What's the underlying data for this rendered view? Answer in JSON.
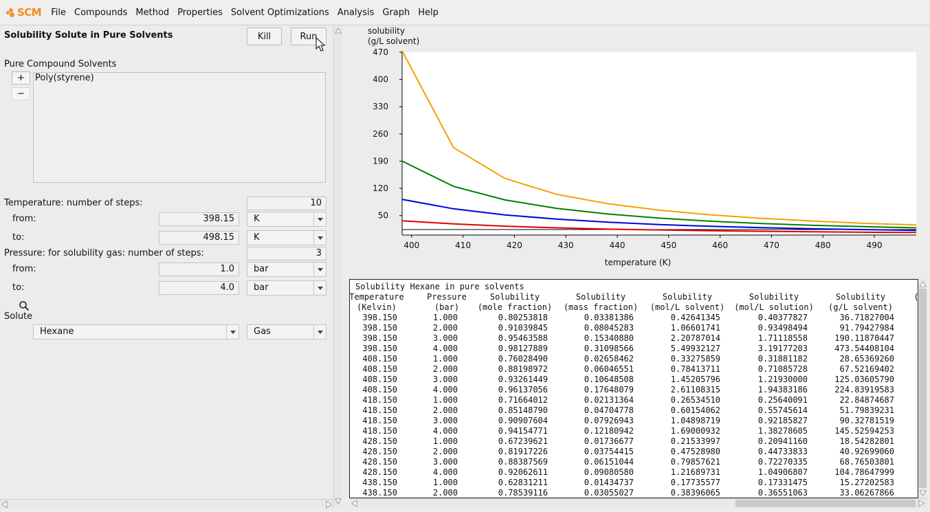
{
  "app": {
    "logo_text": "SCM"
  },
  "menu": [
    "File",
    "Compounds",
    "Method",
    "Properties",
    "Solvent Optimizations",
    "Analysis",
    "Graph",
    "Help"
  ],
  "panel": {
    "title": "Solubility Solute in Pure Solvents",
    "kill_label": "Kill",
    "run_label": "Run",
    "solvents_label": "Pure Compound Solvents",
    "add_label": "+",
    "remove_label": "−",
    "solvents": [
      "Poly(styrene)"
    ],
    "temp_steps_label": "Temperature: number of steps:",
    "temp_steps": "10",
    "temp_from_label": "from:",
    "temp_from": "398.15",
    "temp_from_unit": "K",
    "temp_to_label": "to:",
    "temp_to": "498.15",
    "temp_to_unit": "K",
    "pressure_steps_label": "Pressure: for solubility gas: number of steps:",
    "pressure_steps": "3",
    "pressure_from_label": "from:",
    "pressure_from": "1.0",
    "pressure_from_unit": "bar",
    "pressure_to_label": "to:",
    "pressure_to": "4.0",
    "pressure_to_unit": "bar",
    "solute_label": "Solute",
    "solute": "Hexane",
    "phase": "Gas"
  },
  "chart_data": {
    "type": "line",
    "ylabel_line1": "solubility",
    "ylabel_line2": "(g/L solvent)",
    "xlabel": "temperature (K)",
    "xlim": [
      398.15,
      498.15
    ],
    "ylim": [
      0,
      470
    ],
    "xticks": [
      400,
      410,
      420,
      430,
      440,
      450,
      460,
      470,
      480,
      490
    ],
    "yticks": [
      50,
      120,
      190,
      260,
      330,
      400,
      470
    ],
    "x": [
      398.15,
      408.15,
      418.15,
      428.15,
      438.15,
      448.15,
      458.15,
      468.15,
      478.15,
      488.15,
      498.15
    ],
    "series": [
      {
        "color": "#f5a000",
        "values": [
          473.54,
          224.84,
          145.53,
          104.79,
          80.5,
          64,
          52,
          43,
          36,
          30,
          26
        ]
      },
      {
        "color": "#008000",
        "values": [
          190.12,
          125.04,
          90.33,
          68.77,
          54,
          43.5,
          35.5,
          29.5,
          25,
          21.5,
          18.5
        ]
      },
      {
        "color": "#0000e0",
        "values": [
          91.79,
          67.52,
          51.8,
          40.93,
          33.06,
          27,
          22.5,
          19,
          16,
          14,
          12
        ]
      },
      {
        "color": "#e00000",
        "values": [
          36.72,
          28.65,
          22.85,
          18.54,
          15.27,
          13,
          11,
          9.5,
          8.3,
          7.3,
          6.5
        ]
      }
    ]
  },
  "table": {
    "title": "Solubility Hexane in pure solvents",
    "headers": [
      [
        "Temperature",
        "(Kelvin)"
      ],
      [
        "Pressure",
        "(bar)"
      ],
      [
        "Solubility",
        "(mole fraction)"
      ],
      [
        "Solubility",
        "(mass fraction)"
      ],
      [
        "Solubility",
        "(mol/L solvent)"
      ],
      [
        "Solubility",
        "(mol/L solution)"
      ],
      [
        "Solubility",
        "(g/L solvent)"
      ],
      [
        "(",
        ""
      ]
    ],
    "rows": [
      [
        "398.150",
        "1.000",
        "0.80253818",
        "0.03381386",
        "0.42641345",
        "0.40377827",
        "36.71827004"
      ],
      [
        "398.150",
        "2.000",
        "0.91039845",
        "0.08045283",
        "1.06601741",
        "0.93498494",
        "91.79427984"
      ],
      [
        "398.150",
        "3.000",
        "0.95463588",
        "0.15340880",
        "2.20787014",
        "1.71118558",
        "190.11870447"
      ],
      [
        "398.150",
        "4.000",
        "0.98127889",
        "0.31098566",
        "5.49932127",
        "3.19177203",
        "473.54408104"
      ],
      [
        "408.150",
        "1.000",
        "0.76028490",
        "0.02658462",
        "0.33275859",
        "0.31881182",
        "28.65369260"
      ],
      [
        "408.150",
        "2.000",
        "0.88198972",
        "0.06046551",
        "0.78413711",
        "0.71085728",
        "67.52169402"
      ],
      [
        "408.150",
        "3.000",
        "0.93261449",
        "0.10648508",
        "1.45205796",
        "1.21930000",
        "125.03605790"
      ],
      [
        "408.150",
        "4.000",
        "0.96137056",
        "0.17648079",
        "2.61108315",
        "1.94383186",
        "224.83919583"
      ],
      [
        "418.150",
        "1.000",
        "0.71664012",
        "0.02131364",
        "0.26534510",
        "0.25640091",
        "22.84874687"
      ],
      [
        "418.150",
        "2.000",
        "0.85148790",
        "0.04704778",
        "0.60154062",
        "0.55745614",
        "51.79839231"
      ],
      [
        "418.150",
        "3.000",
        "0.90907604",
        "0.07926943",
        "1.04898719",
        "0.92185827",
        "90.32781519"
      ],
      [
        "418.150",
        "4.000",
        "0.94154771",
        "0.12180942",
        "1.69000932",
        "1.38278605",
        "145.52594253"
      ],
      [
        "428.150",
        "1.000",
        "0.67239621",
        "0.01736677",
        "0.21533997",
        "0.20941160",
        "18.54282801"
      ],
      [
        "428.150",
        "2.000",
        "0.81917226",
        "0.03754415",
        "0.47528980",
        "0.44733833",
        "40.92699060"
      ],
      [
        "428.150",
        "3.000",
        "0.88387569",
        "0.06151044",
        "0.79857621",
        "0.72270335",
        "68.76503801"
      ],
      [
        "428.150",
        "4.000",
        "0.92062611",
        "0.09080580",
        "1.21689731",
        "1.04906807",
        "104.78647999"
      ],
      [
        "438.150",
        "1.000",
        "0.62831211",
        "0.01434737",
        "0.17735577",
        "0.17331475",
        "15.27202583"
      ],
      [
        "438.150",
        "2.000",
        "0.78539116",
        "0.03055027",
        "0.38396065",
        "0.36551063",
        "33.06267866"
      ]
    ]
  }
}
